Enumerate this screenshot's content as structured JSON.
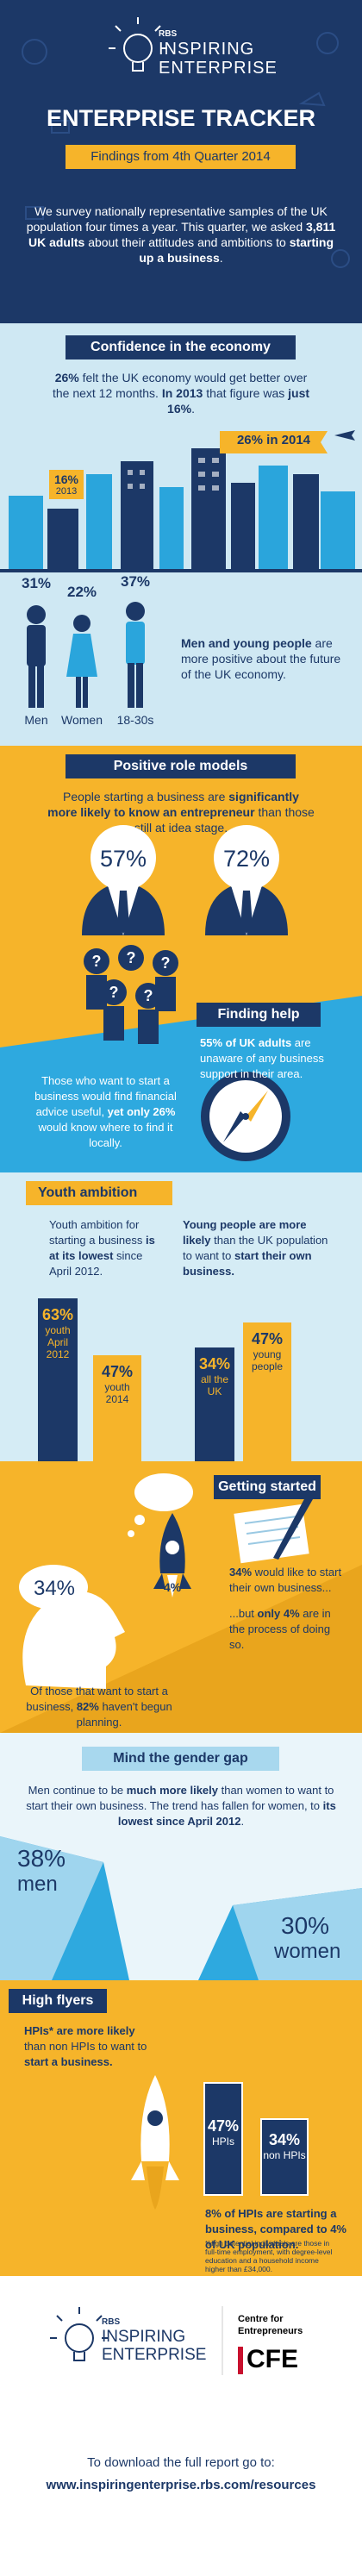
{
  "header": {
    "logo_brand": "RBS",
    "logo_line1": "INSPIRING",
    "logo_line2": "ENTERPRISE",
    "title": "ENTERPRISE TRACKER",
    "subtitle": "Findings from 4th Quarter 2014",
    "intro": [
      "We survey nationally representative samples of the UK population four times a year. This quarter, we asked ",
      "3,811 UK adults",
      " about their attitudes and ambitions to ",
      "starting up a business",
      "."
    ]
  },
  "confidence": {
    "heading": "Confidence in the economy",
    "text": [
      "26%",
      " felt the UK economy would get better over the next 12 months. ",
      "In 2013",
      " that figure was ",
      "just 16%",
      "."
    ],
    "banner_2014": "26% in 2014",
    "badge_2013_value": "16%",
    "badge_2013_year": "2013",
    "groups": [
      {
        "value": "31%",
        "label": "Men"
      },
      {
        "value": "22%",
        "label": "Women"
      },
      {
        "value": "37%",
        "label": "18-30s"
      }
    ],
    "note": [
      "Men and young people",
      " are more positive about the future of the UK economy."
    ]
  },
  "role_models": {
    "heading": "Positive role models",
    "text": [
      "People starting a business are ",
      "significantly more likely to know an entrepreneur",
      " than those still at idea stage."
    ],
    "values": [
      "57%",
      "72%"
    ]
  },
  "finding_help": {
    "heading": "Finding help",
    "text_1": [
      "55% of UK adults",
      " are unaware of any business support in their area."
    ],
    "text_2": [
      "Those who want to start a business would find financial advice useful, ",
      "yet only 26%",
      " would know where to find it locally."
    ]
  },
  "youth_ambition": {
    "heading": "Youth ambition",
    "text_1": [
      "Youth ambition for starting a business ",
      "is at its lowest",
      " since April 2012."
    ],
    "text_2": [
      "Young people are more likely",
      " than the UK population to want to ",
      "start their own business."
    ],
    "bars": [
      {
        "value": "63%",
        "label": "youth April 2012"
      },
      {
        "value": "47%",
        "label": "youth 2014"
      },
      {
        "value": "34%",
        "label": "all the UK"
      },
      {
        "value": "47%",
        "label": "young people"
      }
    ]
  },
  "getting_started": {
    "heading": "Getting started",
    "bubble": "34%",
    "rocket": "4%",
    "text_1": [
      "34%",
      " would like to start their own business..."
    ],
    "text_2": [
      "...but ",
      "only 4%",
      " are in the process of doing so."
    ],
    "text_3": [
      "Of those that want to start a business, ",
      "82%",
      " haven't begun planning."
    ]
  },
  "gender_gap": {
    "heading": "Mind the gender gap",
    "text": [
      "Men continue to be ",
      "much more likely",
      " than women to want to start their own business. The trend has fallen for women, to ",
      "its lowest since April 2012",
      "."
    ],
    "men_value": "38%",
    "men_label": "men",
    "women_value": "30%",
    "women_label": "women"
  },
  "high_flyers": {
    "heading": "High flyers",
    "text_1": [
      "HPIs* are more likely",
      " than non HPIs to want to ",
      "start a business."
    ],
    "bars": [
      {
        "value": "47%",
        "label": "HPIs"
      },
      {
        "value": "34%",
        "label": "non HPIs"
      }
    ],
    "text_2": [
      "8% of HPIs are starting a business, compared to ",
      "4% of UK population."
    ],
    "footnote": "*High potential individuals are those in full-time employment, with degree-level education and a household income higher than £34,000."
  },
  "footer": {
    "logo_brand": "RBS",
    "logo_line1": "INSPIRING",
    "logo_line2": "ENTERPRISE",
    "cfe_line1": "Centre for",
    "cfe_line2": "Entrepreneurs",
    "cfe_mark": "CFE",
    "download": "To download the full report go to:",
    "url": "www.inspiringenterprise.rbs.com/resources"
  }
}
